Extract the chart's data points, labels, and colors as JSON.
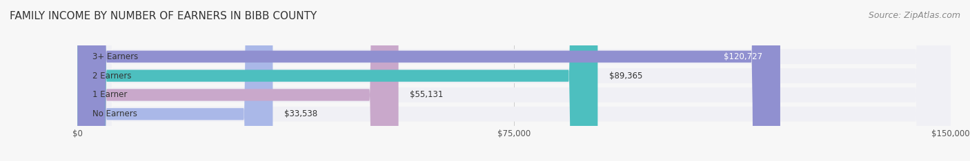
{
  "title": "FAMILY INCOME BY NUMBER OF EARNERS IN BIBB COUNTY",
  "source": "Source: ZipAtlas.com",
  "categories": [
    "No Earners",
    "1 Earner",
    "2 Earners",
    "3+ Earners"
  ],
  "values": [
    33538,
    55131,
    89365,
    120727
  ],
  "bar_colors": [
    "#aab8e8",
    "#c9a8cb",
    "#4dbfbf",
    "#9090d0"
  ],
  "bar_bg_color": "#f0f0f5",
  "label_colors": [
    "#333333",
    "#333333",
    "#333333",
    "#ffffff"
  ],
  "value_labels": [
    "$33,538",
    "$55,131",
    "$89,365",
    "$120,727"
  ],
  "xlim": [
    0,
    150000
  ],
  "xticks": [
    0,
    75000,
    150000
  ],
  "xtick_labels": [
    "$0",
    "$75,000",
    "$150,000"
  ],
  "title_fontsize": 11,
  "source_fontsize": 9,
  "background_color": "#f7f7f7",
  "bar_bg_alpha": 1.0
}
